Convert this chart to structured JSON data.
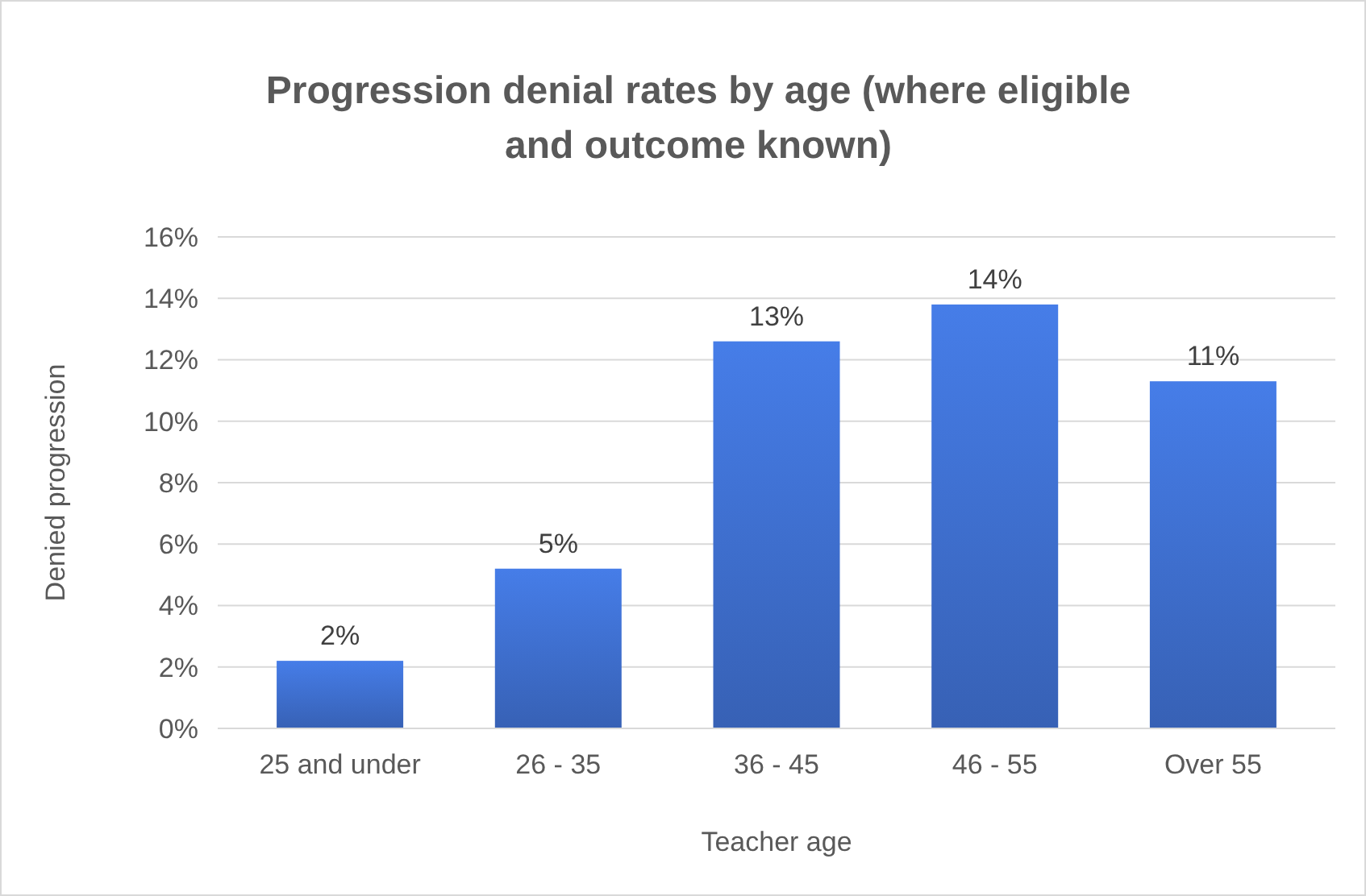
{
  "chart_data": {
    "type": "bar",
    "title": "Progression denial rates by age (where eligible and outcome known)",
    "xlabel": "Teacher age",
    "ylabel": "Denied progression",
    "categories": [
      "25 and under",
      "26 - 35",
      "36 - 45",
      "46 - 55",
      "Over 55"
    ],
    "values": [
      2.2,
      5.2,
      12.6,
      13.8,
      11.3
    ],
    "value_labels": [
      "2%",
      "5%",
      "13%",
      "14%",
      "11%"
    ],
    "color": "#3d6cc9",
    "ylim": [
      0,
      16
    ],
    "yticks": [
      {
        "value": 0,
        "label": "0%"
      },
      {
        "value": 2,
        "label": "2%"
      },
      {
        "value": 4,
        "label": "4%"
      },
      {
        "value": 6,
        "label": "6%"
      },
      {
        "value": 8,
        "label": "8%"
      },
      {
        "value": 10,
        "label": "10%"
      },
      {
        "value": 12,
        "label": "12%"
      },
      {
        "value": 14,
        "label": "14%"
      },
      {
        "value": 16,
        "label": "16%"
      }
    ],
    "grid": "y"
  }
}
